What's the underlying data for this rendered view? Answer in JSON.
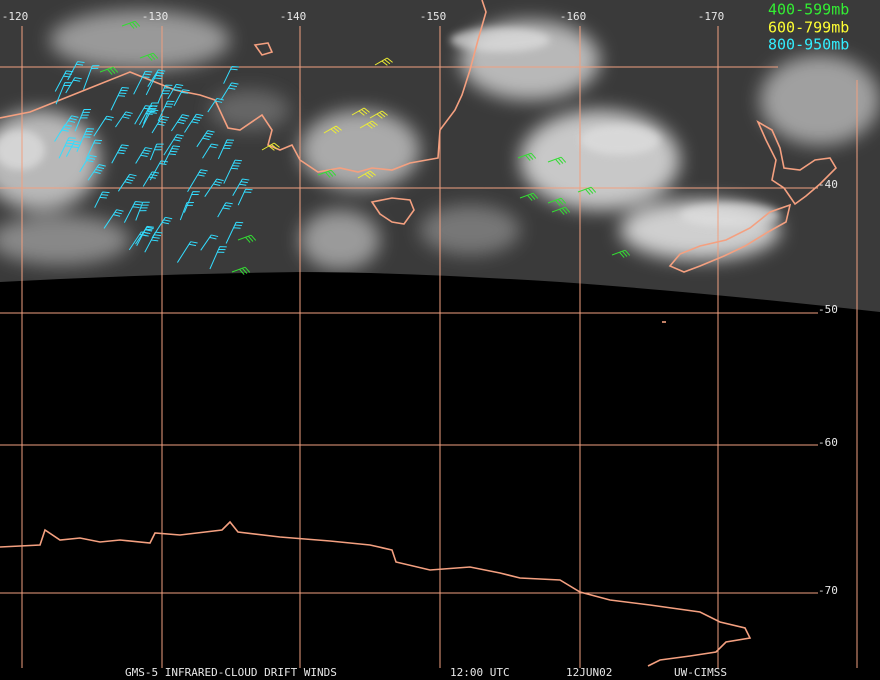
{
  "longitude_labels": [
    "-120",
    "-130",
    "-140",
    "-150",
    "-160",
    "-170"
  ],
  "latitude_labels": [
    "-40",
    "-50",
    "-60",
    "-70"
  ],
  "legend": [
    "400-599mb",
    "600-799mb",
    "800-950mb"
  ],
  "footer": {
    "product": "GMS-5 INFRARED-CLOUD DRIFT WINDS",
    "time": "12:00 UTC",
    "date": "12JUN02",
    "source": "UW-CIMSS"
  }
}
